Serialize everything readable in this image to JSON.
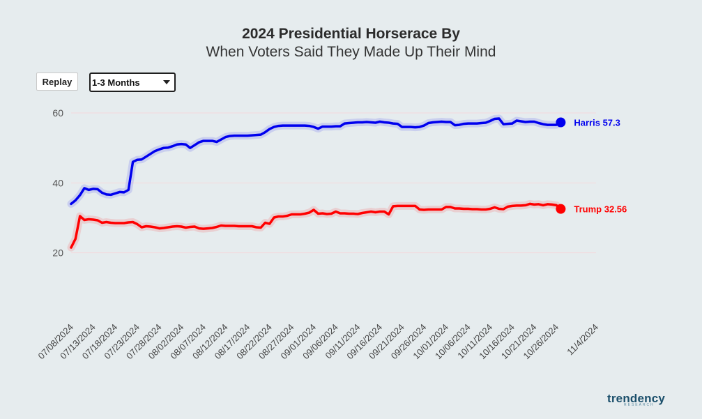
{
  "header": {
    "title": "2024 Presidential Horserace By",
    "subtitle": "When Voters Said They Made Up Their Mind"
  },
  "controls": {
    "replay_label": "Replay",
    "filter_value": "1-3 Months"
  },
  "brand": {
    "logo_text": "trendency",
    "logo_subtext": "RESEARCH"
  },
  "chart_data": {
    "type": "line",
    "title": "2024 Presidential Horserace By When Voters Said They Made Up Their Mind",
    "xlabel": "",
    "ylabel": "",
    "ylim": [
      0,
      62
    ],
    "yticks": [
      20,
      40,
      60
    ],
    "grid": true,
    "x_tick_labels": [
      "07/08/2024",
      "07/13/2024",
      "07/18/2024",
      "07/23/2024",
      "07/28/2024",
      "08/02/2024",
      "08/07/2024",
      "08/12/2024",
      "08/17/2024",
      "08/22/2024",
      "08/27/2024",
      "09/01/2024",
      "09/06/2024",
      "09/11/2024",
      "09/16/2024",
      "09/21/2024",
      "09/26/2024",
      "10/01/2024",
      "10/06/2024",
      "10/11/2024",
      "10/16/2024",
      "10/21/2024",
      "10/26/2024",
      "11/4/2024"
    ],
    "x_tick_dates": [
      "2024-07-08",
      "2024-07-13",
      "2024-07-18",
      "2024-07-23",
      "2024-07-28",
      "2024-08-02",
      "2024-08-07",
      "2024-08-12",
      "2024-08-17",
      "2024-08-22",
      "2024-08-27",
      "2024-09-01",
      "2024-09-06",
      "2024-09-11",
      "2024-09-16",
      "2024-09-21",
      "2024-09-26",
      "2024-10-01",
      "2024-10-06",
      "2024-10-11",
      "2024-10-16",
      "2024-10-21",
      "2024-10-26",
      "2024-11-04"
    ],
    "series": [
      {
        "name": "Harris",
        "color": "#0000ee",
        "end_label": "Harris 57.3",
        "points": [
          [
            "2024-07-08",
            34.0
          ],
          [
            "2024-07-09",
            35.0
          ],
          [
            "2024-07-10",
            36.5
          ],
          [
            "2024-07-11",
            38.5
          ],
          [
            "2024-07-12",
            38.0
          ],
          [
            "2024-07-13",
            38.3
          ],
          [
            "2024-07-14",
            38.2
          ],
          [
            "2024-07-15",
            37.2
          ],
          [
            "2024-07-16",
            36.7
          ],
          [
            "2024-07-17",
            36.6
          ],
          [
            "2024-07-18",
            37.0
          ],
          [
            "2024-07-19",
            37.4
          ],
          [
            "2024-07-20",
            37.3
          ],
          [
            "2024-07-21",
            38.0
          ],
          [
            "2024-07-22",
            46.0
          ],
          [
            "2024-07-23",
            46.6
          ],
          [
            "2024-07-24",
            46.7
          ],
          [
            "2024-07-25",
            47.5
          ],
          [
            "2024-07-26",
            48.3
          ],
          [
            "2024-07-27",
            49.1
          ],
          [
            "2024-07-28",
            49.6
          ],
          [
            "2024-07-29",
            50.0
          ],
          [
            "2024-07-30",
            50.1
          ],
          [
            "2024-07-31",
            50.5
          ],
          [
            "2024-08-01",
            51.0
          ],
          [
            "2024-08-02",
            51.1
          ],
          [
            "2024-08-03",
            51.0
          ],
          [
            "2024-08-04",
            50.0
          ],
          [
            "2024-08-05",
            50.8
          ],
          [
            "2024-08-06",
            51.6
          ],
          [
            "2024-08-07",
            52.0
          ],
          [
            "2024-08-08",
            52.0
          ],
          [
            "2024-08-09",
            52.0
          ],
          [
            "2024-08-10",
            51.7
          ],
          [
            "2024-08-11",
            52.4
          ],
          [
            "2024-08-12",
            53.1
          ],
          [
            "2024-08-13",
            53.4
          ],
          [
            "2024-08-14",
            53.5
          ],
          [
            "2024-08-15",
            53.5
          ],
          [
            "2024-08-16",
            53.5
          ],
          [
            "2024-08-17",
            53.5
          ],
          [
            "2024-08-18",
            53.6
          ],
          [
            "2024-08-19",
            53.7
          ],
          [
            "2024-08-20",
            53.8
          ],
          [
            "2024-08-21",
            54.5
          ],
          [
            "2024-08-22",
            55.4
          ],
          [
            "2024-08-23",
            56.0
          ],
          [
            "2024-08-24",
            56.3
          ],
          [
            "2024-08-25",
            56.4
          ],
          [
            "2024-08-26",
            56.4
          ],
          [
            "2024-08-27",
            56.4
          ],
          [
            "2024-08-28",
            56.4
          ],
          [
            "2024-08-29",
            56.4
          ],
          [
            "2024-08-30",
            56.4
          ],
          [
            "2024-08-31",
            56.3
          ],
          [
            "2024-09-01",
            56.0
          ],
          [
            "2024-09-02",
            55.5
          ],
          [
            "2024-09-03",
            56.1
          ],
          [
            "2024-09-04",
            56.1
          ],
          [
            "2024-09-05",
            56.1
          ],
          [
            "2024-09-06",
            56.2
          ],
          [
            "2024-09-07",
            56.2
          ],
          [
            "2024-09-08",
            57.0
          ],
          [
            "2024-09-09",
            57.1
          ],
          [
            "2024-09-10",
            57.2
          ],
          [
            "2024-09-11",
            57.3
          ],
          [
            "2024-09-12",
            57.3
          ],
          [
            "2024-09-13",
            57.4
          ],
          [
            "2024-09-14",
            57.3
          ],
          [
            "2024-09-15",
            57.2
          ],
          [
            "2024-09-16",
            57.5
          ],
          [
            "2024-09-17",
            57.3
          ],
          [
            "2024-09-18",
            57.2
          ],
          [
            "2024-09-19",
            57.0
          ],
          [
            "2024-09-20",
            56.9
          ],
          [
            "2024-09-21",
            56.0
          ],
          [
            "2024-09-22",
            56.0
          ],
          [
            "2024-09-23",
            56.0
          ],
          [
            "2024-09-24",
            55.9
          ],
          [
            "2024-09-25",
            56.0
          ],
          [
            "2024-09-26",
            56.4
          ],
          [
            "2024-09-27",
            57.1
          ],
          [
            "2024-09-28",
            57.3
          ],
          [
            "2024-09-29",
            57.4
          ],
          [
            "2024-09-30",
            57.5
          ],
          [
            "2024-10-01",
            57.4
          ],
          [
            "2024-10-02",
            57.4
          ],
          [
            "2024-10-03",
            56.5
          ],
          [
            "2024-10-04",
            56.6
          ],
          [
            "2024-10-05",
            56.9
          ],
          [
            "2024-10-06",
            57.0
          ],
          [
            "2024-10-07",
            57.0
          ],
          [
            "2024-10-08",
            57.0
          ],
          [
            "2024-10-09",
            57.1
          ],
          [
            "2024-10-10",
            57.2
          ],
          [
            "2024-10-11",
            57.7
          ],
          [
            "2024-10-12",
            58.3
          ],
          [
            "2024-10-13",
            58.4
          ],
          [
            "2024-10-14",
            56.8
          ],
          [
            "2024-10-15",
            56.9
          ],
          [
            "2024-10-16",
            57.0
          ],
          [
            "2024-10-17",
            57.8
          ],
          [
            "2024-10-18",
            57.6
          ],
          [
            "2024-10-19",
            57.4
          ],
          [
            "2024-10-20",
            57.5
          ],
          [
            "2024-10-21",
            57.5
          ],
          [
            "2024-10-22",
            57.1
          ],
          [
            "2024-10-23",
            56.8
          ],
          [
            "2024-10-24",
            56.6
          ],
          [
            "2024-10-25",
            56.6
          ],
          [
            "2024-10-26",
            56.6
          ],
          [
            "2024-10-27",
            57.3
          ]
        ]
      },
      {
        "name": "Trump",
        "color": "#ff0000",
        "end_label": "Trump 32.56",
        "points": [
          [
            "2024-07-08",
            21.5
          ],
          [
            "2024-07-09",
            24.0
          ],
          [
            "2024-07-10",
            30.5
          ],
          [
            "2024-07-11",
            29.4
          ],
          [
            "2024-07-12",
            29.6
          ],
          [
            "2024-07-13",
            29.5
          ],
          [
            "2024-07-14",
            29.3
          ],
          [
            "2024-07-15",
            28.6
          ],
          [
            "2024-07-16",
            28.8
          ],
          [
            "2024-07-17",
            28.6
          ],
          [
            "2024-07-18",
            28.5
          ],
          [
            "2024-07-19",
            28.5
          ],
          [
            "2024-07-20",
            28.5
          ],
          [
            "2024-07-21",
            28.7
          ],
          [
            "2024-07-22",
            28.8
          ],
          [
            "2024-07-23",
            28.2
          ],
          [
            "2024-07-24",
            27.3
          ],
          [
            "2024-07-25",
            27.6
          ],
          [
            "2024-07-26",
            27.5
          ],
          [
            "2024-07-27",
            27.3
          ],
          [
            "2024-07-28",
            27.0
          ],
          [
            "2024-07-29",
            27.1
          ],
          [
            "2024-07-30",
            27.3
          ],
          [
            "2024-07-31",
            27.5
          ],
          [
            "2024-08-01",
            27.6
          ],
          [
            "2024-08-02",
            27.5
          ],
          [
            "2024-08-03",
            27.2
          ],
          [
            "2024-08-04",
            27.4
          ],
          [
            "2024-08-05",
            27.5
          ],
          [
            "2024-08-06",
            27.0
          ],
          [
            "2024-08-07",
            26.9
          ],
          [
            "2024-08-08",
            27.0
          ],
          [
            "2024-08-09",
            27.1
          ],
          [
            "2024-08-10",
            27.4
          ],
          [
            "2024-08-11",
            27.8
          ],
          [
            "2024-08-12",
            27.7
          ],
          [
            "2024-08-13",
            27.7
          ],
          [
            "2024-08-14",
            27.7
          ],
          [
            "2024-08-15",
            27.6
          ],
          [
            "2024-08-16",
            27.6
          ],
          [
            "2024-08-17",
            27.6
          ],
          [
            "2024-08-18",
            27.6
          ],
          [
            "2024-08-19",
            27.3
          ],
          [
            "2024-08-20",
            27.2
          ],
          [
            "2024-08-21",
            28.6
          ],
          [
            "2024-08-22",
            28.3
          ],
          [
            "2024-08-23",
            30.1
          ],
          [
            "2024-08-24",
            30.4
          ],
          [
            "2024-08-25",
            30.4
          ],
          [
            "2024-08-26",
            30.6
          ],
          [
            "2024-08-27",
            31.0
          ],
          [
            "2024-08-28",
            31.0
          ],
          [
            "2024-08-29",
            31.0
          ],
          [
            "2024-08-30",
            31.2
          ],
          [
            "2024-08-31",
            31.5
          ],
          [
            "2024-09-01",
            32.3
          ],
          [
            "2024-09-02",
            31.2
          ],
          [
            "2024-09-03",
            31.3
          ],
          [
            "2024-09-04",
            31.1
          ],
          [
            "2024-09-05",
            31.2
          ],
          [
            "2024-09-06",
            31.8
          ],
          [
            "2024-09-07",
            31.3
          ],
          [
            "2024-09-08",
            31.3
          ],
          [
            "2024-09-09",
            31.2
          ],
          [
            "2024-09-10",
            31.2
          ],
          [
            "2024-09-11",
            31.1
          ],
          [
            "2024-09-12",
            31.4
          ],
          [
            "2024-09-13",
            31.6
          ],
          [
            "2024-09-14",
            31.8
          ],
          [
            "2024-09-15",
            31.6
          ],
          [
            "2024-09-16",
            31.8
          ],
          [
            "2024-09-17",
            31.8
          ],
          [
            "2024-09-18",
            31.0
          ],
          [
            "2024-09-19",
            33.3
          ],
          [
            "2024-09-20",
            33.4
          ],
          [
            "2024-09-21",
            33.4
          ],
          [
            "2024-09-22",
            33.4
          ],
          [
            "2024-09-23",
            33.4
          ],
          [
            "2024-09-24",
            33.4
          ],
          [
            "2024-09-25",
            32.4
          ],
          [
            "2024-09-26",
            32.3
          ],
          [
            "2024-09-27",
            32.4
          ],
          [
            "2024-09-28",
            32.4
          ],
          [
            "2024-09-29",
            32.4
          ],
          [
            "2024-09-30",
            32.4
          ],
          [
            "2024-10-01",
            33.1
          ],
          [
            "2024-10-02",
            33.1
          ],
          [
            "2024-10-03",
            32.7
          ],
          [
            "2024-10-04",
            32.7
          ],
          [
            "2024-10-05",
            32.6
          ],
          [
            "2024-10-06",
            32.6
          ],
          [
            "2024-10-07",
            32.5
          ],
          [
            "2024-10-08",
            32.5
          ],
          [
            "2024-10-09",
            32.4
          ],
          [
            "2024-10-10",
            32.4
          ],
          [
            "2024-10-11",
            32.6
          ],
          [
            "2024-10-12",
            33.0
          ],
          [
            "2024-10-13",
            32.6
          ],
          [
            "2024-10-14",
            32.5
          ],
          [
            "2024-10-15",
            33.2
          ],
          [
            "2024-10-16",
            33.4
          ],
          [
            "2024-10-17",
            33.5
          ],
          [
            "2024-10-18",
            33.5
          ],
          [
            "2024-10-19",
            33.6
          ],
          [
            "2024-10-20",
            34.0
          ],
          [
            "2024-10-21",
            33.8
          ],
          [
            "2024-10-22",
            33.9
          ],
          [
            "2024-10-23",
            33.6
          ],
          [
            "2024-10-24",
            33.9
          ],
          [
            "2024-10-25",
            33.8
          ],
          [
            "2024-10-26",
            33.6
          ],
          [
            "2024-10-27",
            32.56
          ]
        ]
      }
    ]
  }
}
